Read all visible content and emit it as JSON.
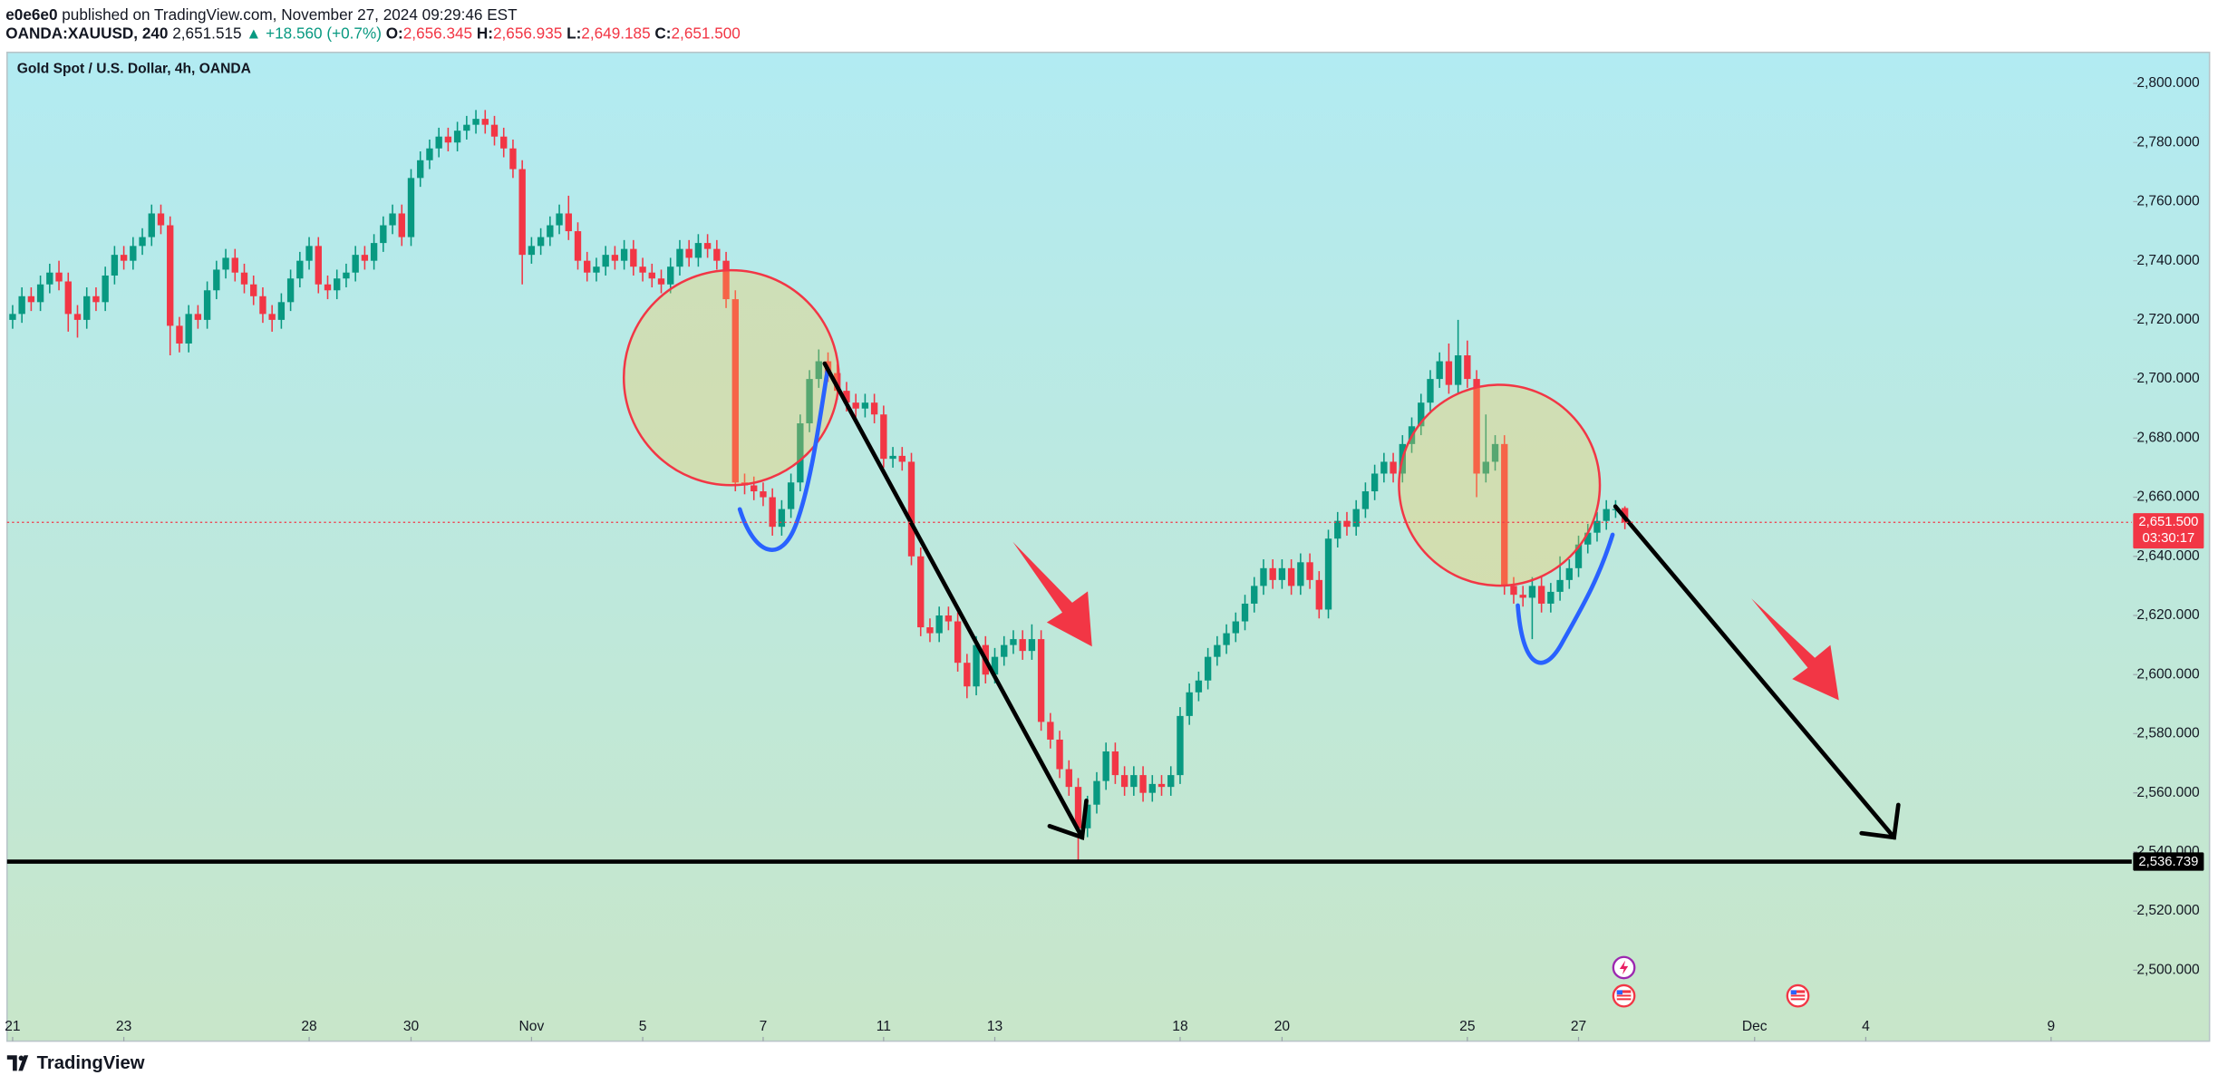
{
  "header": {
    "author": "e0e6e0",
    "published": "published on TradingView.com, November 27, 2024 09:29:46 EST",
    "symbol": "OANDA:XAUUSD, 240",
    "price": "2,651.515",
    "change": "▲ +18.560 (+0.7%)",
    "ohlc": [
      {
        "key": "O:",
        "value": "2,656.345"
      },
      {
        "key": "H:",
        "value": "2,656.935"
      },
      {
        "key": "L:",
        "value": "2,649.185"
      },
      {
        "key": "C:",
        "value": "2,651.500"
      }
    ]
  },
  "footer": {
    "brand": "TradingView"
  },
  "chart_data": {
    "type": "candlestick",
    "title": "Gold Spot / U.S. Dollar, 4h, OANDA",
    "colors": {
      "up": "#089981",
      "down": "#f23645"
    },
    "open": [
      2720,
      2722,
      2728,
      2726,
      2732,
      2736,
      2733,
      2722,
      2720,
      2728,
      2726,
      2735,
      2742,
      2740,
      2745,
      2748,
      2756,
      2752,
      2718,
      2712,
      2722,
      2720,
      2730,
      2737,
      2741,
      2736,
      2732,
      2728,
      2722,
      2720,
      2726,
      2734,
      2740,
      2745,
      2732,
      2730,
      2734,
      2736,
      2742,
      2740,
      2746,
      2752,
      2756,
      2748,
      2768,
      2774,
      2778,
      2782,
      2780,
      2784,
      2786,
      2788,
      2786,
      2782,
      2778,
      2771,
      2742,
      2745,
      2748,
      2752,
      2756,
      2750,
      2740,
      2736,
      2738,
      2742,
      2740,
      2744,
      2738,
      2736,
      2734,
      2732,
      2738,
      2744,
      2741,
      2746,
      2744,
      2740,
      2727,
      2665,
      2664,
      2662,
      2660,
      2650,
      2656,
      2665,
      2685,
      2700,
      2706,
      2702,
      2696,
      2692,
      2690,
      2692,
      2688,
      2673,
      2674,
      2672,
      2640,
      2616,
      2614,
      2620,
      2618,
      2604,
      2596,
      2610,
      2600,
      2606,
      2610,
      2612,
      2608,
      2612,
      2584,
      2578,
      2568,
      2562,
      2548,
      2556,
      2564,
      2574,
      2566,
      2562,
      2566,
      2560,
      2563,
      2562,
      2566,
      2586,
      2594,
      2598,
      2606,
      2610,
      2614,
      2618,
      2624,
      2630,
      2636,
      2632,
      2636,
      2630,
      2638,
      2632,
      2622,
      2646,
      2652,
      2650,
      2656,
      2662,
      2668,
      2672,
      2668,
      2678,
      2684,
      2692,
      2700,
      2706,
      2698,
      2708,
      2700,
      2668,
      2672,
      2678,
      2630,
      2627,
      2626,
      2630,
      2624,
      2628,
      2632,
      2636,
      2644,
      2648,
      2652,
      2656,
      2656.345
    ],
    "high": [
      2725,
      2731,
      2731,
      2735,
      2739,
      2740,
      2736,
      2725,
      2731,
      2731,
      2738,
      2745,
      2745,
      2748,
      2751,
      2759,
      2759,
      2755,
      2721,
      2725,
      2725,
      2733,
      2740,
      2744,
      2744,
      2739,
      2735,
      2731,
      2725,
      2729,
      2737,
      2743,
      2748,
      2748,
      2735,
      2737,
      2739,
      2745,
      2745,
      2749,
      2755,
      2759,
      2759,
      2771,
      2777,
      2781,
      2785,
      2785,
      2787,
      2789,
      2791,
      2791,
      2789,
      2785,
      2781,
      2774,
      2748,
      2751,
      2755,
      2759,
      2762,
      2753,
      2743,
      2741,
      2745,
      2745,
      2747,
      2747,
      2741,
      2739,
      2737,
      2741,
      2747,
      2747,
      2749,
      2749,
      2747,
      2743,
      2730,
      2668,
      2667,
      2665,
      2663,
      2659,
      2668,
      2688,
      2703,
      2710,
      2709,
      2705,
      2699,
      2695,
      2695,
      2695,
      2691,
      2677,
      2677,
      2675,
      2643,
      2619,
      2623,
      2623,
      2621,
      2607,
      2613,
      2613,
      2609,
      2613,
      2615,
      2615,
      2617,
      2615,
      2587,
      2581,
      2571,
      2565,
      2559,
      2567,
      2577,
      2577,
      2569,
      2569,
      2569,
      2566,
      2566,
      2569,
      2589,
      2597,
      2601,
      2609,
      2613,
      2617,
      2621,
      2627,
      2633,
      2639,
      2639,
      2639,
      2639,
      2641,
      2641,
      2635,
      2649,
      2655,
      2655,
      2659,
      2665,
      2671,
      2675,
      2675,
      2681,
      2687,
      2695,
      2703,
      2709,
      2712,
      2720,
      2713,
      2703,
      2688,
      2681,
      2681,
      2633,
      2630,
      2633,
      2633,
      2631,
      2640,
      2639,
      2647,
      2651,
      2655,
      2659,
      2659,
      2656.935
    ],
    "low": [
      2717,
      2719,
      2723,
      2723,
      2729,
      2730,
      2716,
      2714,
      2717,
      2723,
      2723,
      2732,
      2737,
      2737,
      2742,
      2745,
      2749,
      2708,
      2709,
      2709,
      2717,
      2717,
      2727,
      2734,
      2733,
      2729,
      2725,
      2719,
      2716,
      2717,
      2723,
      2731,
      2737,
      2729,
      2727,
      2727,
      2731,
      2733,
      2737,
      2737,
      2743,
      2749,
      2745,
      2745,
      2765,
      2771,
      2775,
      2777,
      2777,
      2781,
      2783,
      2783,
      2779,
      2775,
      2768,
      2732,
      2739,
      2742,
      2745,
      2749,
      2747,
      2737,
      2733,
      2733,
      2735,
      2737,
      2737,
      2735,
      2733,
      2731,
      2729,
      2729,
      2735,
      2738,
      2738,
      2741,
      2737,
      2724,
      2662,
      2661,
      2659,
      2657,
      2647,
      2647,
      2653,
      2662,
      2682,
      2697,
      2699,
      2693,
      2689,
      2687,
      2687,
      2685,
      2670,
      2670,
      2669,
      2637,
      2613,
      2611,
      2611,
      2615,
      2601,
      2592,
      2593,
      2597,
      2597,
      2603,
      2607,
      2605,
      2605,
      2581,
      2575,
      2565,
      2559,
      2537,
      2545,
      2553,
      2561,
      2563,
      2559,
      2559,
      2557,
      2557,
      2559,
      2559,
      2563,
      2583,
      2591,
      2595,
      2603,
      2607,
      2611,
      2615,
      2621,
      2627,
      2629,
      2629,
      2627,
      2627,
      2629,
      2619,
      2619,
      2643,
      2647,
      2647,
      2653,
      2659,
      2665,
      2665,
      2665,
      2675,
      2681,
      2689,
      2697,
      2695,
      2695,
      2697,
      2660,
      2665,
      2669,
      2627,
      2624,
      2623,
      2612,
      2621,
      2621,
      2625,
      2629,
      2633,
      2641,
      2645,
      2649,
      2653,
      2649.185
    ],
    "close": [
      2722,
      2728,
      2726,
      2732,
      2736,
      2733,
      2722,
      2720,
      2728,
      2726,
      2735,
      2742,
      2740,
      2745,
      2748,
      2756,
      2752,
      2718,
      2712,
      2722,
      2720,
      2730,
      2737,
      2741,
      2736,
      2732,
      2728,
      2722,
      2720,
      2726,
      2734,
      2740,
      2745,
      2732,
      2730,
      2734,
      2736,
      2742,
      2740,
      2746,
      2752,
      2756,
      2748,
      2768,
      2774,
      2778,
      2782,
      2780,
      2784,
      2786,
      2788,
      2786,
      2782,
      2778,
      2771,
      2742,
      2745,
      2748,
      2752,
      2756,
      2750,
      2740,
      2736,
      2738,
      2742,
      2740,
      2744,
      2738,
      2736,
      2734,
      2732,
      2738,
      2744,
      2741,
      2746,
      2744,
      2740,
      2727,
      2665,
      2664,
      2662,
      2660,
      2650,
      2656,
      2665,
      2685,
      2700,
      2706,
      2702,
      2696,
      2692,
      2690,
      2692,
      2688,
      2673,
      2674,
      2672,
      2640,
      2616,
      2614,
      2620,
      2618,
      2604,
      2596,
      2610,
      2600,
      2606,
      2610,
      2612,
      2608,
      2612,
      2584,
      2578,
      2568,
      2562,
      2548,
      2556,
      2564,
      2574,
      2566,
      2562,
      2566,
      2560,
      2563,
      2562,
      2566,
      2586,
      2594,
      2598,
      2606,
      2610,
      2614,
      2618,
      2624,
      2630,
      2636,
      2632,
      2636,
      2630,
      2638,
      2632,
      2622,
      2646,
      2652,
      2650,
      2656,
      2662,
      2668,
      2672,
      2668,
      2678,
      2684,
      2692,
      2700,
      2706,
      2698,
      2708,
      2700,
      2668,
      2672,
      2678,
      2630,
      2627,
      2626,
      2630,
      2624,
      2628,
      2632,
      2636,
      2644,
      2648,
      2652,
      2656,
      2656,
      2651.5
    ],
    "xlim": [
      -0.6,
      228.7
    ],
    "xticks": [
      {
        "value": 0,
        "label": "21"
      },
      {
        "value": 12,
        "label": "23"
      },
      {
        "value": 32,
        "label": "28"
      },
      {
        "value": 43,
        "label": "30"
      },
      {
        "value": 56,
        "label": "Nov"
      },
      {
        "value": 68,
        "label": "5"
      },
      {
        "value": 81,
        "label": "7"
      },
      {
        "value": 94,
        "label": "11"
      },
      {
        "value": 106,
        "label": "13"
      },
      {
        "value": 126,
        "label": "18"
      },
      {
        "value": 137,
        "label": "20"
      },
      {
        "value": 157,
        "label": "25"
      },
      {
        "value": 169,
        "label": "27"
      },
      {
        "value": 188,
        "label": "Dec"
      },
      {
        "value": 200,
        "label": "4"
      },
      {
        "value": 220,
        "label": "9"
      }
    ],
    "ylim": [
      2476,
      2810.5
    ],
    "yticks": [
      {
        "value": 2500,
        "label": "2,500.000"
      },
      {
        "value": 2520,
        "label": "2,520.000"
      },
      {
        "value": 2540,
        "label": "2,540.000"
      },
      {
        "value": 2560,
        "label": "2,560.000"
      },
      {
        "value": 2580,
        "label": "2,580.000"
      },
      {
        "value": 2600,
        "label": "2,600.000"
      },
      {
        "value": 2620,
        "label": "2,620.000"
      },
      {
        "value": 2640,
        "label": "2,640.000"
      },
      {
        "value": 2660,
        "label": "2,660.000"
      },
      {
        "value": 2680,
        "label": "2,680.000"
      },
      {
        "value": 2700,
        "label": "2,700.000"
      },
      {
        "value": 2720,
        "label": "2,720.000"
      },
      {
        "value": 2740,
        "label": "2,740.000"
      },
      {
        "value": 2760,
        "label": "2,760.000"
      },
      {
        "value": 2780,
        "label": "2,780.000"
      },
      {
        "value": 2800,
        "label": "2,800.000"
      }
    ],
    "last_price": {
      "value": 2651.5,
      "label": "2,651.500",
      "countdown": "03:30:17"
    },
    "support_line": {
      "value": 2536.739,
      "label": "2,536.739"
    }
  }
}
